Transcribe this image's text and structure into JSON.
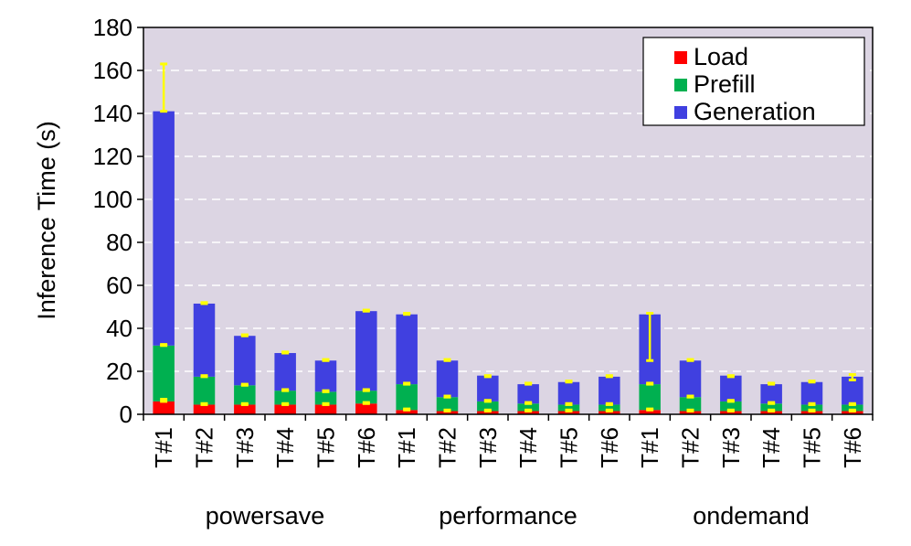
{
  "chart_data": {
    "type": "bar",
    "stacked": true,
    "ylabel": "Inference Time (s)",
    "ylim": [
      0,
      180
    ],
    "yticks": [
      0,
      20,
      40,
      60,
      80,
      100,
      120,
      140,
      160,
      180
    ],
    "grid": true,
    "legend_position": "top-right",
    "colors": {
      "Load": "#ff0000",
      "Prefill": "#00b050",
      "Generation": "#4040e0",
      "error_bar": "#ffff00",
      "plot_background": "#dcd5e3",
      "grid": "#ffffff"
    },
    "groups": [
      {
        "name": "powersave",
        "categories": [
          "T#1",
          "T#2",
          "T#3",
          "T#4",
          "T#5",
          "T#6"
        ]
      },
      {
        "name": "performance",
        "categories": [
          "T#1",
          "T#2",
          "T#3",
          "T#4",
          "T#5",
          "T#6"
        ]
      },
      {
        "name": "ondemand",
        "categories": [
          "T#1",
          "T#2",
          "T#3",
          "T#4",
          "T#5",
          "T#6"
        ]
      }
    ],
    "series": [
      {
        "name": "Load",
        "values": [
          6,
          4.5,
          4.5,
          4.5,
          4.5,
          5,
          2,
          1.5,
          1.5,
          1.5,
          1.5,
          1.5,
          2,
          1.5,
          1.5,
          1.5,
          1.5,
          1.5
        ]
      },
      {
        "name": "Prefill",
        "values": [
          26,
          13,
          9,
          6.5,
          6,
          6,
          12,
          6.5,
          4.5,
          3.5,
          3,
          3,
          12,
          6.5,
          4.5,
          3.5,
          3,
          3
        ]
      },
      {
        "name": "Generation",
        "values": [
          109,
          34,
          23,
          17.5,
          14.5,
          37,
          32.5,
          17,
          12,
          9,
          10.5,
          13,
          32.5,
          17,
          12,
          9,
          10.5,
          13
        ]
      }
    ],
    "error_bars": [
      {
        "series": "Load",
        "low": [
          6,
          4.5,
          4.5,
          4.5,
          4.5,
          5,
          2,
          1.5,
          1.5,
          1.5,
          1.5,
          1.5,
          2,
          1.5,
          1.5,
          1.5,
          1.5,
          1.5
        ],
        "high": [
          7,
          5,
          5,
          5,
          5,
          5.5,
          2.5,
          2,
          2,
          2,
          2,
          2,
          2.5,
          2,
          2,
          2,
          2,
          2
        ]
      },
      {
        "series": "Prefill",
        "low": [
          32,
          17.5,
          13.5,
          11,
          10.5,
          11,
          14,
          8,
          6,
          5,
          4.5,
          4.5,
          14,
          8,
          6,
          5,
          4.5,
          4.5
        ],
        "high": [
          32.5,
          18,
          14,
          11.5,
          11,
          11.5,
          14.5,
          8.5,
          6.5,
          5.5,
          5,
          5,
          14.5,
          8.5,
          6.5,
          5.5,
          5,
          5
        ]
      },
      {
        "series": "Generation",
        "low": [
          141,
          51.5,
          36.5,
          28.5,
          25,
          48,
          46.5,
          25,
          17.5,
          14,
          15,
          17.5,
          25,
          25,
          17.5,
          14,
          15,
          16
        ],
        "high": [
          163,
          52,
          37,
          29,
          25.5,
          48.5,
          47,
          25.5,
          18,
          14.5,
          15.5,
          18,
          47,
          25.5,
          18,
          14.5,
          15.5,
          18.5
        ]
      }
    ]
  }
}
